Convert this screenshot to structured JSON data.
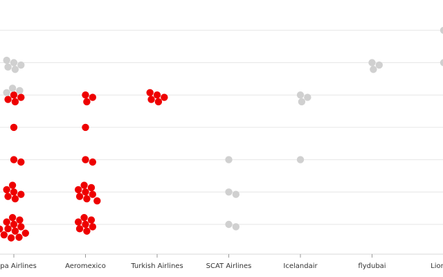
{
  "chart_data": {
    "type": "scatter",
    "subtype": "beeswarm",
    "categories": [
      "Copa Airlines",
      "Aeromexico",
      "Turkish Airlines",
      "SCAT Airlines",
      "Icelandair",
      "flydubai",
      "Lion Air"
    ],
    "y_levels": 7,
    "grid": true,
    "colors": {
      "highlight": "#ee0000",
      "muted": "#d0d0d0"
    },
    "points": [
      {
        "category": "Copa Airlines",
        "level": 1,
        "count": 12,
        "color": "highlight"
      },
      {
        "category": "Copa Airlines",
        "level": 2,
        "count": 6,
        "color": "highlight"
      },
      {
        "category": "Copa Airlines",
        "level": 3,
        "count": 2,
        "color": "highlight"
      },
      {
        "category": "Copa Airlines",
        "level": 4,
        "count": 1,
        "color": "highlight"
      },
      {
        "category": "Copa Airlines",
        "level": 5,
        "count": 4,
        "color": "highlight"
      },
      {
        "category": "Copa Airlines",
        "level": 5,
        "count": 3,
        "color": "muted"
      },
      {
        "category": "Copa Airlines",
        "level": 6,
        "count": 5,
        "color": "muted"
      },
      {
        "category": "Aeromexico",
        "level": 1,
        "count": 7,
        "color": "highlight"
      },
      {
        "category": "Aeromexico",
        "level": 2,
        "count": 8,
        "color": "highlight"
      },
      {
        "category": "Aeromexico",
        "level": 3,
        "count": 2,
        "color": "highlight"
      },
      {
        "category": "Aeromexico",
        "level": 4,
        "count": 1,
        "color": "highlight"
      },
      {
        "category": "Aeromexico",
        "level": 5,
        "count": 3,
        "color": "highlight"
      },
      {
        "category": "Turkish Airlines",
        "level": 5,
        "count": 5,
        "color": "highlight"
      },
      {
        "category": "SCAT Airlines",
        "level": 1,
        "count": 2,
        "color": "muted"
      },
      {
        "category": "SCAT Airlines",
        "level": 2,
        "count": 2,
        "color": "muted"
      },
      {
        "category": "SCAT Airlines",
        "level": 3,
        "count": 1,
        "color": "muted"
      },
      {
        "category": "Icelandair",
        "level": 3,
        "count": 1,
        "color": "muted"
      },
      {
        "category": "Icelandair",
        "level": 5,
        "count": 3,
        "color": "muted"
      },
      {
        "category": "flydubai",
        "level": 6,
        "count": 3,
        "color": "muted"
      },
      {
        "category": "Lion Air",
        "level": 6,
        "count": 1,
        "color": "muted"
      },
      {
        "category": "Lion Air",
        "level": 7,
        "count": 2,
        "color": "muted"
      }
    ]
  }
}
